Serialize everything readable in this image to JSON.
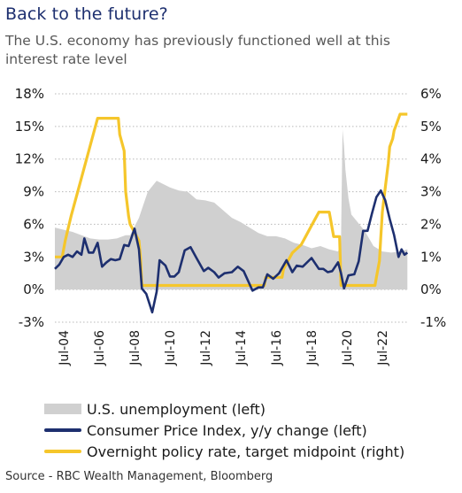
{
  "header": {
    "title": "Back to the future?",
    "subtitle": "The U.S. economy has previously functioned well at this interest rate level"
  },
  "source": "Source - RBC Wealth Management, Bloomberg",
  "colors": {
    "unemployment": "#d0d0d0",
    "cpi": "#1d2f6f",
    "policy_rate": "#f5c62b",
    "title": "#1d2f6f"
  },
  "chart_data": {
    "type": "line",
    "title": "",
    "xlabel": "",
    "ylabel_left": "",
    "ylabel_right": "",
    "x_ticks": [
      "Jul-04",
      "Jul-06",
      "Jul-08",
      "Jul-10",
      "Jul-12",
      "Jul-14",
      "Jul-16",
      "Jul-18",
      "Jul-20",
      "Jul-22"
    ],
    "x_range": [
      "2004-01",
      "2023-12"
    ],
    "ylim_left": [
      -3,
      18
    ],
    "ylim_right": [
      -1,
      6
    ],
    "y_ticks_left": [
      "-3%",
      "0%",
      "3%",
      "6%",
      "9%",
      "12%",
      "15%",
      "18%"
    ],
    "y_ticks_right": [
      "-1%",
      "0%",
      "1%",
      "2%",
      "3%",
      "4%",
      "5%",
      "6%"
    ],
    "legend": [
      "U.S. unemployment (left)",
      "Consumer Price Index, y/y change (left)",
      "Overnight policy rate, target midpoint (right)"
    ],
    "legend_position": "bottom",
    "series": [
      {
        "name": "U.S. unemployment (left)",
        "type": "area",
        "axis": "left",
        "points": [
          [
            "2004-01",
            5.7
          ],
          [
            "2004-07",
            5.5
          ],
          [
            "2005-01",
            5.3
          ],
          [
            "2005-07",
            5.0
          ],
          [
            "2006-01",
            4.7
          ],
          [
            "2006-07",
            4.6
          ],
          [
            "2007-01",
            4.6
          ],
          [
            "2007-07",
            4.7
          ],
          [
            "2008-01",
            5.0
          ],
          [
            "2008-04",
            5.0
          ],
          [
            "2008-07",
            5.8
          ],
          [
            "2008-10",
            6.6
          ],
          [
            "2009-01",
            7.8
          ],
          [
            "2009-04",
            9.0
          ],
          [
            "2009-07",
            9.5
          ],
          [
            "2009-10",
            10.0
          ],
          [
            "2010-01",
            9.8
          ],
          [
            "2010-07",
            9.4
          ],
          [
            "2011-01",
            9.1
          ],
          [
            "2011-07",
            9.0
          ],
          [
            "2012-01",
            8.3
          ],
          [
            "2012-07",
            8.2
          ],
          [
            "2013-01",
            8.0
          ],
          [
            "2013-07",
            7.3
          ],
          [
            "2014-01",
            6.6
          ],
          [
            "2014-07",
            6.2
          ],
          [
            "2015-01",
            5.7
          ],
          [
            "2015-07",
            5.2
          ],
          [
            "2016-01",
            4.9
          ],
          [
            "2016-07",
            4.9
          ],
          [
            "2017-01",
            4.7
          ],
          [
            "2017-07",
            4.3
          ],
          [
            "2018-01",
            4.1
          ],
          [
            "2018-07",
            3.8
          ],
          [
            "2019-01",
            4.0
          ],
          [
            "2019-07",
            3.7
          ],
          [
            "2020-01",
            3.5
          ],
          [
            "2020-03",
            4.4
          ],
          [
            "2020-04",
            14.7
          ],
          [
            "2020-05",
            13.2
          ],
          [
            "2020-06",
            11.0
          ],
          [
            "2020-08",
            8.4
          ],
          [
            "2020-10",
            6.9
          ],
          [
            "2021-01",
            6.4
          ],
          [
            "2021-07",
            5.4
          ],
          [
            "2022-01",
            4.0
          ],
          [
            "2022-07",
            3.5
          ],
          [
            "2023-01",
            3.4
          ],
          [
            "2023-07",
            3.5
          ],
          [
            "2023-12",
            3.7
          ]
        ]
      },
      {
        "name": "Consumer Price Index, y/y change (left)",
        "type": "line",
        "axis": "left",
        "points": [
          [
            "2004-01",
            1.9
          ],
          [
            "2004-04",
            2.3
          ],
          [
            "2004-07",
            3.0
          ],
          [
            "2004-10",
            3.2
          ],
          [
            "2005-01",
            3.0
          ],
          [
            "2005-04",
            3.5
          ],
          [
            "2005-07",
            3.2
          ],
          [
            "2005-09",
            4.7
          ],
          [
            "2005-12",
            3.4
          ],
          [
            "2006-03",
            3.4
          ],
          [
            "2006-06",
            4.3
          ],
          [
            "2006-09",
            2.1
          ],
          [
            "2006-12",
            2.5
          ],
          [
            "2007-03",
            2.8
          ],
          [
            "2007-06",
            2.7
          ],
          [
            "2007-09",
            2.8
          ],
          [
            "2007-12",
            4.1
          ],
          [
            "2008-03",
            4.0
          ],
          [
            "2008-07",
            5.6
          ],
          [
            "2008-10",
            3.7
          ],
          [
            "2008-12",
            0.1
          ],
          [
            "2009-03",
            -0.4
          ],
          [
            "2009-07",
            -2.1
          ],
          [
            "2009-10",
            -0.2
          ],
          [
            "2009-12",
            2.7
          ],
          [
            "2010-04",
            2.2
          ],
          [
            "2010-07",
            1.2
          ],
          [
            "2010-10",
            1.2
          ],
          [
            "2011-01",
            1.6
          ],
          [
            "2011-05",
            3.6
          ],
          [
            "2011-09",
            3.9
          ],
          [
            "2012-01",
            2.9
          ],
          [
            "2012-06",
            1.7
          ],
          [
            "2012-09",
            2.0
          ],
          [
            "2013-01",
            1.6
          ],
          [
            "2013-04",
            1.1
          ],
          [
            "2013-08",
            1.5
          ],
          [
            "2014-01",
            1.6
          ],
          [
            "2014-05",
            2.1
          ],
          [
            "2014-09",
            1.7
          ],
          [
            "2014-12",
            0.8
          ],
          [
            "2015-03",
            -0.1
          ],
          [
            "2015-07",
            0.2
          ],
          [
            "2015-10",
            0.2
          ],
          [
            "2016-01",
            1.4
          ],
          [
            "2016-05",
            1.0
          ],
          [
            "2016-09",
            1.5
          ],
          [
            "2017-02",
            2.7
          ],
          [
            "2017-06",
            1.6
          ],
          [
            "2017-09",
            2.2
          ],
          [
            "2018-01",
            2.1
          ],
          [
            "2018-07",
            2.9
          ],
          [
            "2018-12",
            1.9
          ],
          [
            "2019-03",
            1.9
          ],
          [
            "2019-06",
            1.6
          ],
          [
            "2019-09",
            1.7
          ],
          [
            "2020-01",
            2.5
          ],
          [
            "2020-03",
            1.5
          ],
          [
            "2020-05",
            0.1
          ],
          [
            "2020-08",
            1.3
          ],
          [
            "2020-12",
            1.4
          ],
          [
            "2021-03",
            2.6
          ],
          [
            "2021-06",
            5.4
          ],
          [
            "2021-09",
            5.4
          ],
          [
            "2021-12",
            7.0
          ],
          [
            "2022-03",
            8.5
          ],
          [
            "2022-06",
            9.1
          ],
          [
            "2022-09",
            8.2
          ],
          [
            "2022-12",
            6.5
          ],
          [
            "2023-03",
            5.0
          ],
          [
            "2023-06",
            3.0
          ],
          [
            "2023-08",
            3.7
          ],
          [
            "2023-10",
            3.2
          ],
          [
            "2023-12",
            3.4
          ]
        ]
      },
      {
        "name": "Overnight policy rate, target midpoint (right)",
        "type": "line",
        "axis": "right",
        "points": [
          [
            "2004-01",
            1.0
          ],
          [
            "2004-06",
            1.0
          ],
          [
            "2004-08",
            1.5
          ],
          [
            "2004-12",
            2.25
          ],
          [
            "2005-06",
            3.25
          ],
          [
            "2005-12",
            4.25
          ],
          [
            "2006-06",
            5.25
          ],
          [
            "2007-08",
            5.25
          ],
          [
            "2007-09",
            4.75
          ],
          [
            "2007-12",
            4.25
          ],
          [
            "2008-01",
            3.0
          ],
          [
            "2008-03",
            2.25
          ],
          [
            "2008-04",
            2.0
          ],
          [
            "2008-10",
            1.5
          ],
          [
            "2008-11",
            1.0
          ],
          [
            "2008-12",
            0.125
          ],
          [
            "2015-11",
            0.125
          ],
          [
            "2015-12",
            0.375
          ],
          [
            "2016-11",
            0.375
          ],
          [
            "2016-12",
            0.625
          ],
          [
            "2017-03",
            0.875
          ],
          [
            "2017-06",
            1.125
          ],
          [
            "2017-12",
            1.375
          ],
          [
            "2018-03",
            1.625
          ],
          [
            "2018-06",
            1.875
          ],
          [
            "2018-09",
            2.125
          ],
          [
            "2018-12",
            2.375
          ],
          [
            "2019-07",
            2.375
          ],
          [
            "2019-08",
            2.125
          ],
          [
            "2019-09",
            1.875
          ],
          [
            "2019-10",
            1.625
          ],
          [
            "2020-02",
            1.625
          ],
          [
            "2020-03",
            0.125
          ],
          [
            "2022-02",
            0.125
          ],
          [
            "2022-03",
            0.375
          ],
          [
            "2022-05",
            0.875
          ],
          [
            "2022-06",
            1.625
          ],
          [
            "2022-07",
            2.375
          ],
          [
            "2022-09",
            3.125
          ],
          [
            "2022-11",
            3.875
          ],
          [
            "2022-12",
            4.375
          ],
          [
            "2023-02",
            4.625
          ],
          [
            "2023-03",
            4.875
          ],
          [
            "2023-05",
            5.125
          ],
          [
            "2023-07",
            5.375
          ],
          [
            "2023-12",
            5.375
          ]
        ]
      }
    ]
  }
}
